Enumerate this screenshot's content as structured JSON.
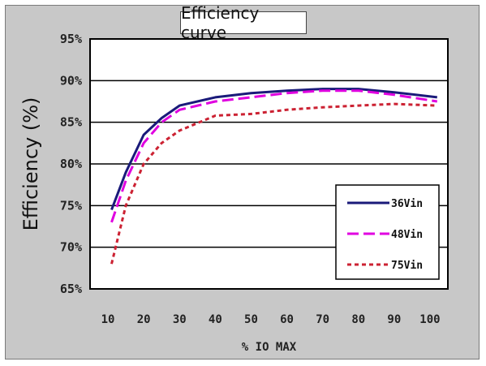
{
  "chart_data": {
    "type": "line",
    "title": "Efficiency curve",
    "xlabel": "% IO MAX",
    "ylabel": "Efficiency (%)",
    "xlim": [
      5,
      105
    ],
    "ylim": [
      65,
      95
    ],
    "x_ticks": [
      "10",
      "20",
      "30",
      "40",
      "50",
      "60",
      "70",
      "80",
      "90",
      "100"
    ],
    "y_ticks": [
      "95%",
      "90%",
      "85%",
      "80%",
      "75%",
      "70%",
      "65%"
    ],
    "y_tick_values": [
      95,
      90,
      85,
      80,
      75,
      70,
      65
    ],
    "grid": true,
    "legend_position": "bottom-right",
    "series": [
      {
        "name": "36Vin",
        "color": "#1a1a7a",
        "dash": "solid",
        "points": [
          [
            11,
            74.5
          ],
          [
            15,
            79
          ],
          [
            20,
            83.5
          ],
          [
            25,
            85.5
          ],
          [
            30,
            87
          ],
          [
            40,
            88
          ],
          [
            50,
            88.5
          ],
          [
            60,
            88.8
          ],
          [
            70,
            89
          ],
          [
            80,
            89
          ],
          [
            90,
            88.6
          ],
          [
            102,
            88
          ]
        ]
      },
      {
        "name": "48Vin",
        "color": "#e000e0",
        "dash": "long",
        "points": [
          [
            11,
            73
          ],
          [
            15,
            78
          ],
          [
            20,
            82.5
          ],
          [
            25,
            85
          ],
          [
            30,
            86.5
          ],
          [
            40,
            87.5
          ],
          [
            50,
            88
          ],
          [
            60,
            88.5
          ],
          [
            70,
            88.8
          ],
          [
            80,
            88.8
          ],
          [
            90,
            88.3
          ],
          [
            102,
            87.5
          ]
        ]
      },
      {
        "name": "75Vin",
        "color": "#cc2233",
        "dash": "short",
        "points": [
          [
            11,
            68
          ],
          [
            15,
            75
          ],
          [
            20,
            80
          ],
          [
            25,
            82.5
          ],
          [
            30,
            84
          ],
          [
            40,
            85.8
          ],
          [
            50,
            86
          ],
          [
            60,
            86.5
          ],
          [
            70,
            86.8
          ],
          [
            80,
            87
          ],
          [
            90,
            87.2
          ],
          [
            102,
            87
          ]
        ]
      }
    ]
  }
}
